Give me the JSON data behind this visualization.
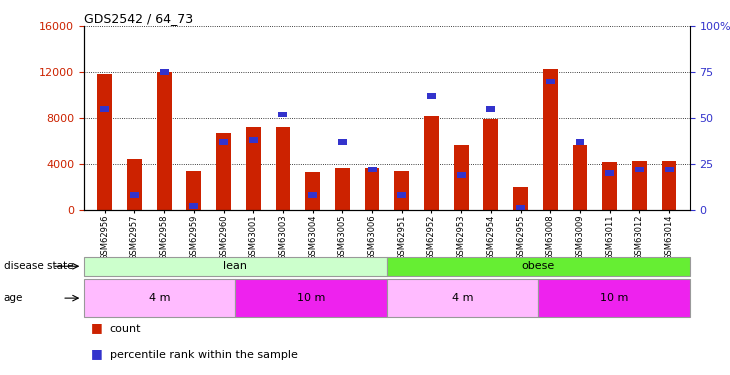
{
  "title": "GDS2542 / 64_73",
  "samples": [
    "GSM62956",
    "GSM62957",
    "GSM62958",
    "GSM62959",
    "GSM62960",
    "GSM63001",
    "GSM63003",
    "GSM63004",
    "GSM63005",
    "GSM63006",
    "GSM62951",
    "GSM62952",
    "GSM62953",
    "GSM62954",
    "GSM62955",
    "GSM63008",
    "GSM63009",
    "GSM63011",
    "GSM63012",
    "GSM63014"
  ],
  "count_values": [
    11800,
    4400,
    12000,
    3400,
    6700,
    7200,
    7200,
    3300,
    3700,
    3700,
    3400,
    8200,
    5700,
    7900,
    2000,
    12300,
    5700,
    4200,
    4300,
    4300
  ],
  "percentile_values": [
    55,
    8,
    75,
    2,
    37,
    38,
    52,
    8,
    37,
    22,
    8,
    62,
    19,
    55,
    1,
    70,
    37,
    20,
    22,
    22
  ],
  "ylim_left": [
    0,
    16000
  ],
  "ylim_right": [
    0,
    100
  ],
  "left_yticks": [
    0,
    4000,
    8000,
    12000,
    16000
  ],
  "right_yticks": [
    0,
    25,
    50,
    75,
    100
  ],
  "bar_color": "#cc2200",
  "dot_color": "#3333cc",
  "disease_state_groups": [
    {
      "label": "lean",
      "start": 0,
      "end": 10,
      "color": "#ccffcc"
    },
    {
      "label": "obese",
      "start": 10,
      "end": 20,
      "color": "#66ee33"
    }
  ],
  "age_groups": [
    {
      "label": "4 m",
      "start": 0,
      "end": 5,
      "color": "#ffbbff"
    },
    {
      "label": "10 m",
      "start": 5,
      "end": 10,
      "color": "#ee22ee"
    },
    {
      "label": "4 m",
      "start": 10,
      "end": 15,
      "color": "#ffbbff"
    },
    {
      "label": "10 m",
      "start": 15,
      "end": 20,
      "color": "#ee22ee"
    }
  ],
  "disease_label": "disease state",
  "age_label": "age",
  "legend_count_label": "count",
  "legend_pct_label": "percentile rank within the sample"
}
